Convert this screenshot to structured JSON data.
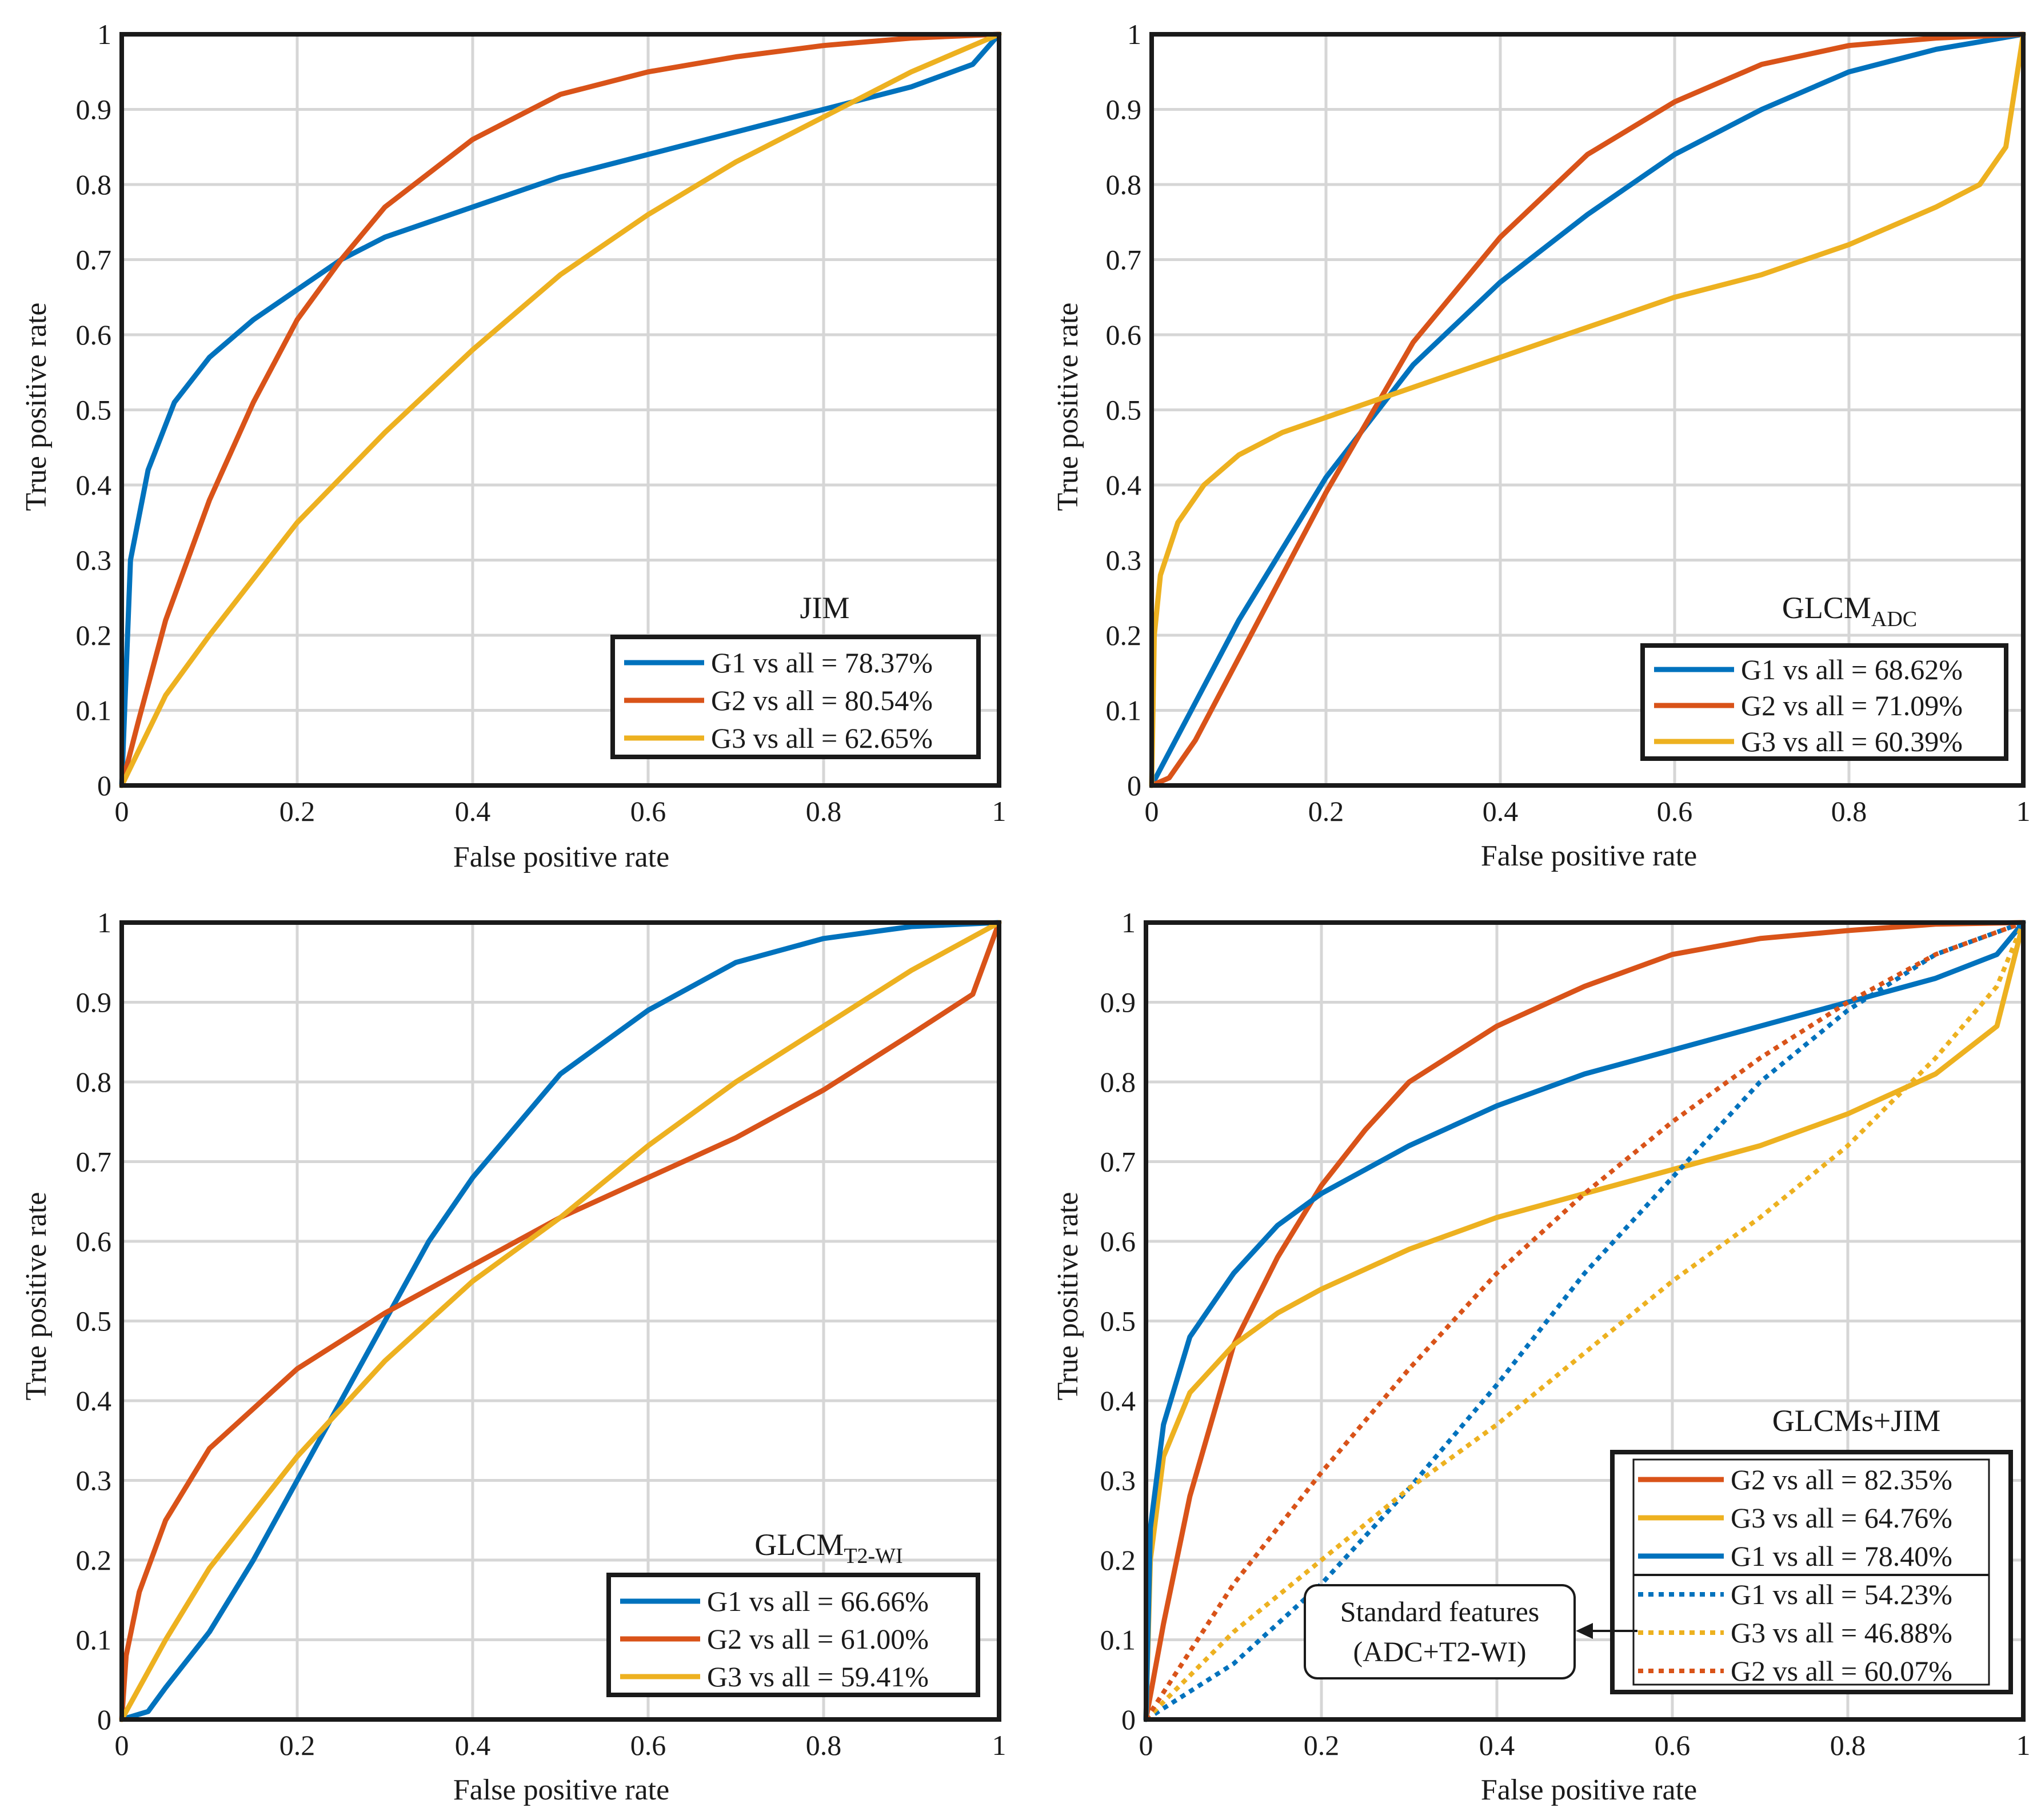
{
  "colors": {
    "G1": "#0072BD",
    "G2": "#D95319",
    "G3": "#EDB120",
    "grid": "#d6d6d6",
    "axis": "#1a1a1a"
  },
  "chart_data": [
    {
      "type": "line",
      "title": "JIM",
      "title_sub": "",
      "xlabel": "False positive rate",
      "ylabel": "True positive rate",
      "xlim": [
        0,
        1
      ],
      "ylim": [
        0,
        1
      ],
      "xticks": [
        "0",
        "0.2",
        "0.4",
        "0.6",
        "0.8",
        "1"
      ],
      "yticks": [
        "0",
        "0.1",
        "0.2",
        "0.3",
        "0.4",
        "0.5",
        "0.6",
        "0.7",
        "0.8",
        "0.9",
        "1"
      ],
      "legend_position": "bottom-right",
      "series": [
        {
          "name": "G1 vs all = 78.37%",
          "color": "G1",
          "style": "solid",
          "x": [
            0,
            0.01,
            0.03,
            0.06,
            0.1,
            0.15,
            0.2,
            0.25,
            0.3,
            0.4,
            0.5,
            0.6,
            0.7,
            0.8,
            0.9,
            0.97,
            1
          ],
          "y": [
            0,
            0.3,
            0.42,
            0.51,
            0.57,
            0.62,
            0.66,
            0.7,
            0.73,
            0.77,
            0.81,
            0.84,
            0.87,
            0.9,
            0.93,
            0.96,
            1
          ]
        },
        {
          "name": "G2 vs all = 80.54%",
          "color": "G2",
          "style": "solid",
          "x": [
            0,
            0.02,
            0.05,
            0.1,
            0.15,
            0.2,
            0.25,
            0.3,
            0.4,
            0.5,
            0.6,
            0.7,
            0.8,
            0.9,
            1
          ],
          "y": [
            0,
            0.09,
            0.22,
            0.38,
            0.51,
            0.62,
            0.7,
            0.77,
            0.86,
            0.92,
            0.95,
            0.97,
            0.985,
            0.995,
            1
          ]
        },
        {
          "name": "G3 vs all = 62.65%",
          "color": "G3",
          "style": "solid",
          "x": [
            0,
            0.05,
            0.1,
            0.2,
            0.3,
            0.4,
            0.5,
            0.6,
            0.7,
            0.8,
            0.9,
            1
          ],
          "y": [
            0,
            0.12,
            0.2,
            0.35,
            0.47,
            0.58,
            0.68,
            0.76,
            0.83,
            0.89,
            0.95,
            1
          ]
        }
      ]
    },
    {
      "type": "line",
      "title": "GLCM",
      "title_sub": "ADC",
      "xlabel": "False positive rate",
      "ylabel": "True positive rate",
      "xlim": [
        0,
        1
      ],
      "ylim": [
        0,
        1
      ],
      "xticks": [
        "0",
        "0.2",
        "0.4",
        "0.6",
        "0.8",
        "1"
      ],
      "yticks": [
        "0",
        "0.1",
        "0.2",
        "0.3",
        "0.4",
        "0.5",
        "0.6",
        "0.7",
        "0.8",
        "0.9",
        "1"
      ],
      "legend_position": "bottom-right",
      "series": [
        {
          "name": "G1 vs all = 68.62%",
          "color": "G1",
          "style": "solid",
          "x": [
            0,
            0.05,
            0.1,
            0.2,
            0.3,
            0.4,
            0.5,
            0.6,
            0.7,
            0.8,
            0.9,
            1
          ],
          "y": [
            0,
            0.11,
            0.22,
            0.41,
            0.56,
            0.67,
            0.76,
            0.84,
            0.9,
            0.95,
            0.98,
            1
          ]
        },
        {
          "name": "G2 vs all = 71.09%",
          "color": "G2",
          "style": "solid",
          "x": [
            0,
            0.02,
            0.05,
            0.1,
            0.15,
            0.2,
            0.27,
            0.3,
            0.4,
            0.5,
            0.6,
            0.7,
            0.8,
            0.9,
            1
          ],
          "y": [
            0,
            0.01,
            0.06,
            0.17,
            0.28,
            0.39,
            0.53,
            0.59,
            0.73,
            0.84,
            0.91,
            0.96,
            0.985,
            0.995,
            1
          ]
        },
        {
          "name": "G3 vs all = 60.39%",
          "color": "G3",
          "style": "solid",
          "x": [
            0,
            0.003,
            0.01,
            0.03,
            0.06,
            0.1,
            0.15,
            0.2,
            0.3,
            0.4,
            0.5,
            0.6,
            0.7,
            0.8,
            0.9,
            0.95,
            0.98,
            1
          ],
          "y": [
            0,
            0.2,
            0.28,
            0.35,
            0.4,
            0.44,
            0.47,
            0.49,
            0.53,
            0.57,
            0.61,
            0.65,
            0.68,
            0.72,
            0.77,
            0.8,
            0.85,
            1
          ]
        }
      ]
    },
    {
      "type": "line",
      "title": "GLCM",
      "title_sub": "T2-WI",
      "xlabel": "False positive rate",
      "ylabel": "True positive rate",
      "xlim": [
        0,
        1
      ],
      "ylim": [
        0,
        1
      ],
      "xticks": [
        "0",
        "0.2",
        "0.4",
        "0.6",
        "0.8",
        "1"
      ],
      "yticks": [
        "0",
        "0.1",
        "0.2",
        "0.3",
        "0.4",
        "0.5",
        "0.6",
        "0.7",
        "0.8",
        "0.9",
        "1"
      ],
      "legend_position": "bottom-right",
      "series": [
        {
          "name": "G1 vs all = 66.66%",
          "color": "G1",
          "style": "solid",
          "x": [
            0,
            0.03,
            0.05,
            0.1,
            0.15,
            0.2,
            0.25,
            0.3,
            0.35,
            0.4,
            0.5,
            0.6,
            0.7,
            0.8,
            0.9,
            1
          ],
          "y": [
            0,
            0.01,
            0.04,
            0.11,
            0.2,
            0.3,
            0.4,
            0.5,
            0.6,
            0.68,
            0.81,
            0.89,
            0.95,
            0.98,
            0.995,
            1
          ]
        },
        {
          "name": "G2 vs all = 61.00%",
          "color": "G2",
          "style": "solid",
          "x": [
            0,
            0.005,
            0.02,
            0.05,
            0.1,
            0.15,
            0.2,
            0.3,
            0.4,
            0.5,
            0.6,
            0.7,
            0.8,
            0.9,
            0.97,
            1
          ],
          "y": [
            0,
            0.08,
            0.16,
            0.25,
            0.34,
            0.39,
            0.44,
            0.51,
            0.57,
            0.63,
            0.68,
            0.73,
            0.79,
            0.86,
            0.91,
            1
          ]
        },
        {
          "name": "G3 vs all = 59.41%",
          "color": "G3",
          "style": "solid",
          "x": [
            0,
            0.05,
            0.1,
            0.2,
            0.3,
            0.4,
            0.5,
            0.6,
            0.7,
            0.8,
            0.9,
            1
          ],
          "y": [
            0,
            0.1,
            0.19,
            0.33,
            0.45,
            0.55,
            0.63,
            0.72,
            0.8,
            0.87,
            0.94,
            1
          ]
        }
      ]
    },
    {
      "type": "line",
      "title": "GLCMs+JIM",
      "title_sub": "",
      "xlabel": "False positive rate",
      "ylabel": "True positive rate",
      "xlim": [
        0,
        1
      ],
      "ylim": [
        0,
        1
      ],
      "xticks": [
        "0",
        "0.2",
        "0.4",
        "0.6",
        "0.8",
        "1"
      ],
      "yticks": [
        "0",
        "0.1",
        "0.2",
        "0.3",
        "0.4",
        "0.5",
        "0.6",
        "0.7",
        "0.8",
        "0.9",
        "1"
      ],
      "legend_position": "bottom-right",
      "annotation": {
        "line1": "Standard  features",
        "line2": "(ADC+T2-WI)"
      },
      "series": [
        {
          "name": "G2 vs all = 82.35%",
          "color": "G2",
          "style": "solid",
          "x": [
            0,
            0.02,
            0.05,
            0.1,
            0.15,
            0.2,
            0.25,
            0.3,
            0.4,
            0.5,
            0.6,
            0.7,
            0.8,
            0.9,
            1
          ],
          "y": [
            0,
            0.12,
            0.28,
            0.47,
            0.58,
            0.67,
            0.74,
            0.8,
            0.87,
            0.92,
            0.96,
            0.98,
            0.99,
            0.998,
            1
          ]
        },
        {
          "name": "G3 vs all = 64.76%",
          "color": "G3",
          "style": "solid",
          "x": [
            0,
            0.005,
            0.02,
            0.05,
            0.1,
            0.15,
            0.2,
            0.3,
            0.4,
            0.5,
            0.6,
            0.7,
            0.8,
            0.9,
            0.97,
            1
          ],
          "y": [
            0,
            0.2,
            0.33,
            0.41,
            0.47,
            0.51,
            0.54,
            0.59,
            0.63,
            0.66,
            0.69,
            0.72,
            0.76,
            0.81,
            0.87,
            1
          ]
        },
        {
          "name": "G1 vs all = 78.40%",
          "color": "G1",
          "style": "solid",
          "x": [
            0,
            0.005,
            0.02,
            0.05,
            0.1,
            0.15,
            0.2,
            0.3,
            0.4,
            0.5,
            0.6,
            0.7,
            0.8,
            0.9,
            0.97,
            1
          ],
          "y": [
            0,
            0.24,
            0.37,
            0.48,
            0.56,
            0.62,
            0.66,
            0.72,
            0.77,
            0.81,
            0.84,
            0.87,
            0.9,
            0.93,
            0.96,
            1
          ]
        },
        {
          "name": "G1 vs all = 54.23%",
          "color": "G1",
          "style": "dotted",
          "x": [
            0,
            0.1,
            0.2,
            0.3,
            0.4,
            0.5,
            0.6,
            0.7,
            0.8,
            0.9,
            1
          ],
          "y": [
            0,
            0.07,
            0.17,
            0.29,
            0.42,
            0.56,
            0.68,
            0.8,
            0.89,
            0.96,
            1
          ]
        },
        {
          "name": "G3 vs all = 46.88%",
          "color": "G3",
          "style": "dotted",
          "x": [
            0,
            0.1,
            0.2,
            0.3,
            0.4,
            0.5,
            0.6,
            0.7,
            0.8,
            0.9,
            0.97,
            1
          ],
          "y": [
            0,
            0.11,
            0.2,
            0.29,
            0.37,
            0.46,
            0.55,
            0.63,
            0.72,
            0.83,
            0.92,
            1
          ]
        },
        {
          "name": "G2 vs all = 60.07%",
          "color": "G2",
          "style": "dotted",
          "x": [
            0,
            0.1,
            0.2,
            0.3,
            0.4,
            0.5,
            0.6,
            0.7,
            0.8,
            0.9,
            1
          ],
          "y": [
            0,
            0.17,
            0.31,
            0.44,
            0.56,
            0.66,
            0.75,
            0.83,
            0.9,
            0.96,
            1
          ]
        }
      ]
    }
  ]
}
